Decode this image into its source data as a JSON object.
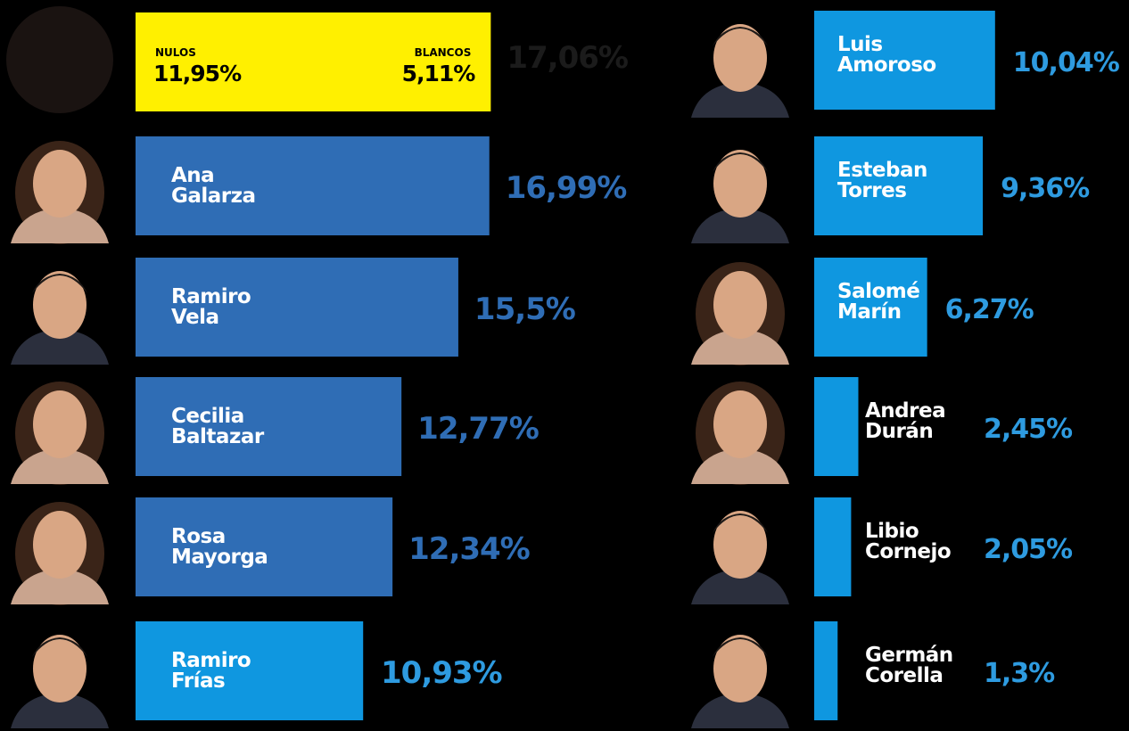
{
  "colors": {
    "background": "#000000",
    "bar_dark": "#2f6db5",
    "bar_light": "#0f97e0",
    "bar_nulos": "#fff000",
    "pct_dark": "#2f6db5",
    "pct_light": "#2e9be0",
    "pct_nulos": "#1b1b1b"
  },
  "chart_data": {
    "type": "bar",
    "orientation": "horizontal",
    "unit": "%",
    "xlim": [
      0,
      20
    ],
    "nulos_blancos": {
      "nulos_label": "NULOS",
      "nulos_value": 11.95,
      "nulos_text": "11,95%",
      "blancos_label": "BLANCOS",
      "blancos_value": 5.11,
      "blancos_text": "5,11%",
      "total_value": 17.06,
      "total_text": "17,06%"
    },
    "candidates": [
      {
        "first": "Ana",
        "last": "Galarza",
        "value": 16.99,
        "text": "16,99%",
        "color": "dark",
        "column": "left"
      },
      {
        "first": "Ramiro",
        "last": "Vela",
        "value": 15.5,
        "text": "15,5%",
        "color": "dark",
        "column": "left"
      },
      {
        "first": "Cecilia",
        "last": "Baltazar",
        "value": 12.77,
        "text": "12,77%",
        "color": "dark",
        "column": "left"
      },
      {
        "first": "Rosa",
        "last": "Mayorga",
        "value": 12.34,
        "text": "12,34%",
        "color": "dark",
        "column": "left"
      },
      {
        "first": "Ramiro",
        "last": "Frías",
        "value": 10.93,
        "text": "10,93%",
        "color": "light",
        "column": "left"
      },
      {
        "first": "Luis",
        "last": "Amoroso",
        "value": 10.04,
        "text": "10,04%",
        "color": "light",
        "column": "right"
      },
      {
        "first": "Esteban",
        "last": "Torres",
        "value": 9.36,
        "text": "9,36%",
        "color": "light",
        "column": "right"
      },
      {
        "first": "Salomé",
        "last": "Marín",
        "value": 6.27,
        "text": "6,27%",
        "color": "light",
        "column": "right"
      },
      {
        "first": "Andrea",
        "last": "Durán",
        "value": 2.45,
        "text": "2,45%",
        "color": "light",
        "column": "right"
      },
      {
        "first": "Libio",
        "last": "Cornejo",
        "value": 2.05,
        "text": "2,05%",
        "color": "light",
        "column": "right"
      },
      {
        "first": "Germán",
        "last": "Corella",
        "value": 1.3,
        "text": "1,3%",
        "color": "light",
        "column": "right"
      }
    ]
  }
}
